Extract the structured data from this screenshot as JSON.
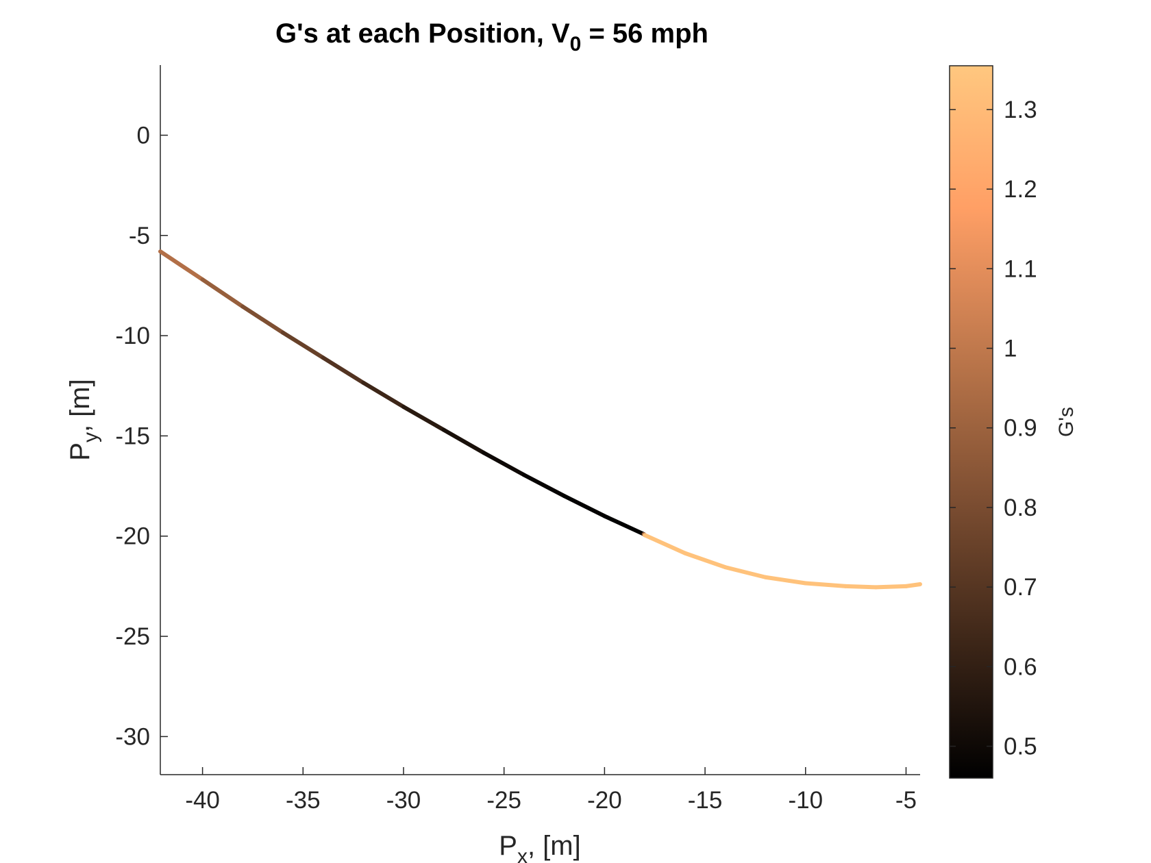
{
  "chart_data": {
    "type": "line",
    "title": {
      "prefix": "G's at each Position, V",
      "subscript": "0",
      "suffix": " = 56 mph"
    },
    "xlabel": {
      "main": "P",
      "sub": "x",
      "rest": ", [m]"
    },
    "ylabel": {
      "main": "P",
      "sub": "y",
      "rest": ", [m]"
    },
    "xlim": [
      -42.1,
      -4.3
    ],
    "ylim": [
      -31.9,
      3.5
    ],
    "xticks": [
      -40,
      -35,
      -30,
      -25,
      -20,
      -15,
      -10,
      -5
    ],
    "xtick_labels": [
      "-40",
      "-35",
      "-30",
      "-25",
      "-20",
      "-15",
      "-10",
      "-5"
    ],
    "yticks": [
      0,
      -5,
      -10,
      -15,
      -20,
      -25,
      -30
    ],
    "ytick_labels": [
      "0",
      "-5",
      "-10",
      "-15",
      "-20",
      "-25",
      "-30"
    ],
    "grid": false,
    "colorbar": {
      "label": "G's",
      "colormap": "copper",
      "clim": [
        0.46,
        1.355
      ],
      "ticks": [
        0.5,
        0.6,
        0.7,
        0.8,
        0.9,
        1,
        1.1,
        1.2,
        1.3
      ],
      "tick_labels": [
        "0.5",
        "0.6",
        "0.7",
        "0.8",
        "0.9",
        "1",
        "1.1",
        "1.2",
        "1.3"
      ]
    },
    "series": [
      {
        "x": [
          -42.1,
          -40,
          -38,
          -36,
          -34,
          -32,
          -30,
          -28,
          -26,
          -24,
          -22,
          -20,
          -18.05,
          -18,
          -16,
          -14,
          -12,
          -10,
          -8,
          -6.5,
          -5,
          -4.3
        ],
        "y": [
          -5.8,
          -7.2,
          -8.55,
          -9.85,
          -11.1,
          -12.35,
          -13.55,
          -14.7,
          -15.85,
          -16.95,
          -18.0,
          -19.0,
          -19.9,
          -19.95,
          -20.85,
          -21.55,
          -22.05,
          -22.35,
          -22.5,
          -22.55,
          -22.5,
          -22.4
        ],
        "g": [
          1.0,
          0.92,
          0.85,
          0.78,
          0.72,
          0.66,
          0.6,
          0.55,
          0.51,
          0.49,
          0.47,
          0.465,
          0.46,
          1.33,
          1.33,
          1.33,
          1.33,
          1.33,
          1.33,
          1.33,
          1.33,
          1.33
        ]
      }
    ]
  }
}
